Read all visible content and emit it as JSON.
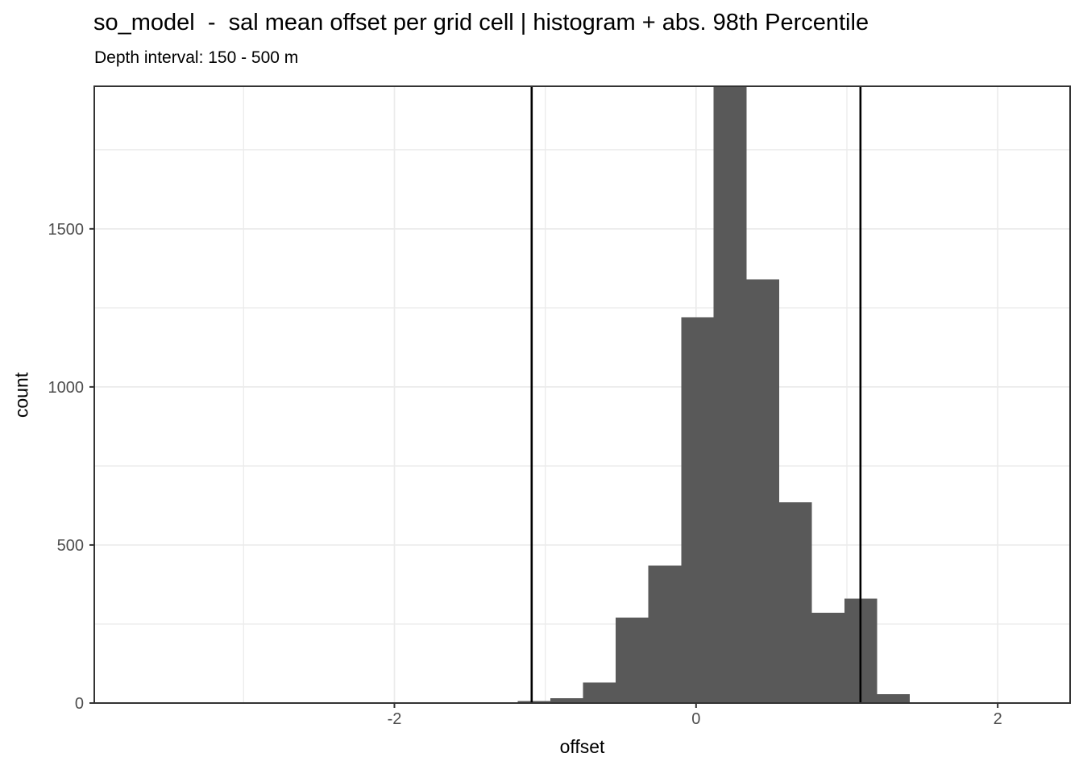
{
  "header": {
    "title": "so_model  -  sal mean offset per grid cell | histogram + abs. 98th Percentile",
    "subtitle": "Depth interval: 150 - 500 m"
  },
  "chart_data": {
    "type": "bar",
    "subtype": "histogram",
    "title": "so_model  -  sal mean offset per grid cell | histogram + abs. 98th Percentile",
    "subtitle": "Depth interval: 150 - 500 m",
    "xlabel": "offset",
    "ylabel": "count",
    "xlim": [
      -3.99,
      2.48
    ],
    "ylim": [
      0,
      1951
    ],
    "x_ticks": [
      -2,
      0,
      2
    ],
    "x_tick_labels": [
      "-2",
      "0",
      "2"
    ],
    "x_minor_ticks": [
      -3,
      -1,
      1,
      3
    ],
    "y_ticks": [
      0,
      500,
      1000,
      1500
    ],
    "y_tick_labels": [
      "0",
      "500",
      "1000",
      "1500"
    ],
    "y_minor_ticks": [
      250,
      750,
      1250,
      1750
    ],
    "bin_edges": [
      -1.398,
      -1.182,
      -0.965,
      -0.749,
      -0.532,
      -0.316,
      -0.099,
      0.117,
      0.334,
      0.55,
      0.767,
      0.983,
      1.2,
      1.417
    ],
    "counts": [
      3,
      7,
      15,
      65,
      270,
      435,
      1220,
      2100,
      1340,
      635,
      285,
      330,
      28
    ],
    "tallest_bar_clipped_at_top": true,
    "clipped_bar_index": 7,
    "vlines": {
      "description": "abs. 98th Percentile",
      "values": [
        -1.09,
        1.09
      ]
    },
    "grid": "major+minor",
    "legend": "none",
    "colors": {
      "bar": "#595959",
      "grid": "#EBEBEB",
      "border": "#333333",
      "tick": "#333333",
      "axis_text": "#4D4D4D",
      "vline": "#000000",
      "background": "#FFFFFF"
    }
  }
}
